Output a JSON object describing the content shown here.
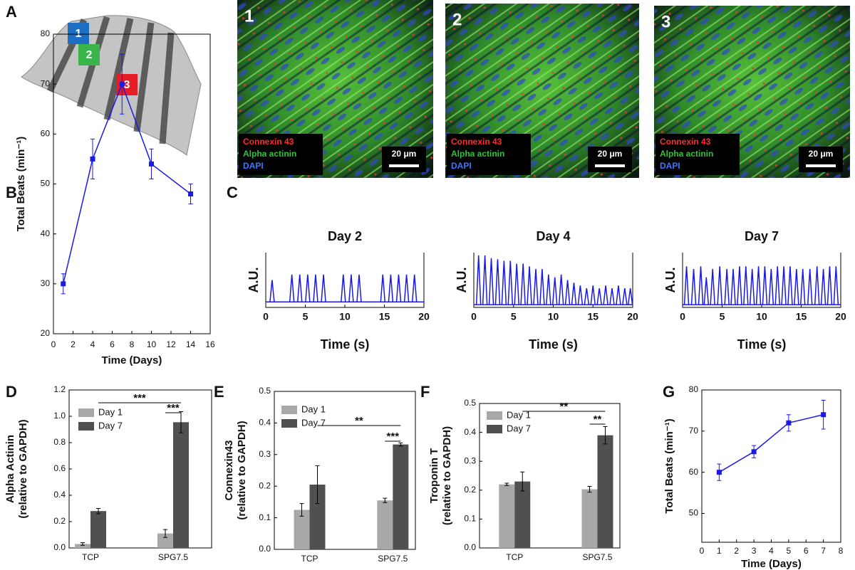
{
  "panel_a": {
    "label": "A",
    "markers": [
      "1",
      "2",
      "3"
    ],
    "marker_colors": [
      "#1d6fc4",
      "#39b54a",
      "#e51e25"
    ],
    "stain_colors": [
      "#ff2a2a",
      "#2fc23a",
      "#3a78ff"
    ],
    "images": [
      {
        "number": "1",
        "stains": [
          "Connexin 43",
          "Alpha actinin",
          "DAPI"
        ],
        "scale_bar": "20 μm"
      },
      {
        "number": "2",
        "stains": [
          "Connexin 43",
          "Alpha actinin",
          "DAPI"
        ],
        "scale_bar": "20 μm"
      },
      {
        "number": "3",
        "stains": [
          "Connexin 43",
          "Alpha actinin",
          "DAPI"
        ],
        "scale_bar": "20 μm"
      }
    ]
  },
  "chart_data": [
    {
      "type": "line",
      "panel": "B",
      "xlabel": "Time (Days)",
      "ylabel": "Total Beats (min⁻¹)",
      "x": [
        1,
        4,
        7,
        10,
        14
      ],
      "series": [
        {
          "color": "#1a1ae6",
          "values": [
            30,
            55,
            70,
            54,
            48
          ],
          "errors": [
            2,
            4,
            6,
            3,
            2
          ]
        }
      ],
      "xlim": [
        0,
        16
      ],
      "xticks": [
        0,
        2,
        4,
        6,
        8,
        10,
        12,
        14,
        16
      ],
      "ylim": [
        20,
        80
      ],
      "yticks": [
        20,
        30,
        40,
        50,
        60,
        70,
        80
      ]
    },
    {
      "type": "line",
      "panel": "C",
      "title": "Day 2",
      "xlabel": "Time (s)",
      "ylabel": "A.U.",
      "x": [
        0.8,
        3.3,
        4.3,
        5.3,
        6.3,
        7.3,
        9.8,
        10.8,
        11.8,
        14.8,
        15.8,
        16.8,
        17.8,
        18.8
      ],
      "baseline": 0.1,
      "series": [
        {
          "color": "#1a1ae6",
          "values": [
            0.5,
            0.6,
            0.6,
            0.6,
            0.6,
            0.6,
            0.6,
            0.6,
            0.6,
            0.6,
            0.6,
            0.6,
            0.6,
            0.6
          ]
        }
      ],
      "xlim": [
        0,
        20
      ],
      "xticks": [
        0,
        5,
        10,
        15,
        20
      ],
      "ylim": [
        0,
        1
      ]
    },
    {
      "type": "line",
      "title": "Day 4",
      "xlabel": "Time (s)",
      "ylabel": "A.U.",
      "x": [
        0.6,
        1.4,
        2.2,
        3.0,
        3.8,
        4.6,
        5.4,
        6.2,
        7.0,
        7.8,
        8.6,
        9.4,
        10.2,
        11.0,
        11.8,
        12.6,
        13.4,
        14.2,
        15.0,
        15.8,
        16.6,
        17.4,
        18.2,
        19.0,
        19.7
      ],
      "baseline": 0.05,
      "series": [
        {
          "color": "#1a1ae6",
          "values": [
            0.95,
            0.95,
            0.9,
            0.88,
            0.85,
            0.85,
            0.8,
            0.8,
            0.75,
            0.7,
            0.7,
            0.6,
            0.55,
            0.6,
            0.5,
            0.45,
            0.4,
            0.35,
            0.4,
            0.35,
            0.4,
            0.35,
            0.4,
            0.35,
            0.35
          ]
        }
      ],
      "xlim": [
        0,
        20
      ],
      "xticks": [
        0,
        5,
        10,
        15,
        20
      ],
      "ylim": [
        0,
        1
      ]
    },
    {
      "type": "line",
      "title": "Day 7",
      "xlabel": "Time (s)",
      "ylabel": "A.U.",
      "x": [
        0.5,
        1.4,
        2.3,
        3.0,
        3.8,
        4.7,
        5.6,
        6.4,
        7.2,
        8.0,
        8.8,
        9.6,
        10.4,
        11.2,
        12.0,
        12.8,
        13.6,
        14.4,
        15.2,
        16.1,
        17.0,
        17.8,
        18.6,
        19.4
      ],
      "baseline": 0.05,
      "series": [
        {
          "color": "#1a1ae6",
          "values": [
            0.75,
            0.7,
            0.75,
            0.55,
            0.7,
            0.75,
            0.7,
            0.7,
            0.75,
            0.75,
            0.7,
            0.75,
            0.75,
            0.7,
            0.75,
            0.75,
            0.75,
            0.7,
            0.7,
            0.7,
            0.75,
            0.7,
            0.75,
            0.75
          ]
        }
      ],
      "xlim": [
        0,
        20
      ],
      "xticks": [
        0,
        5,
        10,
        15,
        20
      ],
      "ylim": [
        0,
        1
      ]
    },
    {
      "type": "bar",
      "panel": "D",
      "ylabel": [
        "Alpha Actinin",
        "(relative to GAPDH)"
      ],
      "categories": [
        "TCP",
        "SPG7.5"
      ],
      "series": [
        {
          "name": "Day 1",
          "color": "#a8a8a8",
          "values": [
            0.03,
            0.11
          ],
          "errors": [
            0.01,
            0.03
          ]
        },
        {
          "name": "Day 7",
          "color": "#505050",
          "values": [
            0.28,
            0.955
          ],
          "errors": [
            0.02,
            0.08
          ]
        }
      ],
      "ylim": [
        0,
        1.2
      ],
      "yticks": [
        {
          "value": 0,
          "label": "0.0"
        },
        0.2,
        0.4,
        0.6,
        0.8,
        {
          "value": 1,
          "label": "1.0"
        },
        1.2
      ],
      "annotations": [
        "***",
        "***"
      ]
    },
    {
      "type": "bar",
      "panel": "E",
      "ylabel": [
        "Connexin43",
        "(relative to GAPDH)"
      ],
      "categories": [
        "TCP",
        "SPG7.5"
      ],
      "series": [
        {
          "name": "Day 1",
          "color": "#a8a8a8",
          "values": [
            0.125,
            0.155
          ],
          "errors": [
            0.02,
            0.007
          ]
        },
        {
          "name": "Day 7",
          "color": "#505050",
          "values": [
            0.205,
            0.332
          ],
          "errors": [
            0.06,
            0.005
          ]
        }
      ],
      "ylim": [
        0,
        0.5
      ],
      "yticks": [
        {
          "value": 0,
          "label": "0.0"
        },
        0.1,
        0.2,
        0.3,
        0.4,
        0.5
      ],
      "annotations": [
        "**",
        "***"
      ]
    },
    {
      "type": "bar",
      "panel": "F",
      "ylabel": [
        "Troponin T",
        "(relative to GAPDH)"
      ],
      "categories": [
        "TCP",
        "SPG7.5"
      ],
      "series": [
        {
          "name": "Day 1",
          "color": "#a8a8a8",
          "values": [
            0.22,
            0.203
          ],
          "errors": [
            0.004,
            0.01
          ]
        },
        {
          "name": "Day 7",
          "color": "#505050",
          "values": [
            0.23,
            0.39
          ],
          "errors": [
            0.033,
            0.03
          ]
        }
      ],
      "ylim": [
        0,
        0.5
      ],
      "yticks": [
        {
          "value": 0,
          "label": "0.0"
        },
        0.1,
        0.2,
        0.3,
        0.4,
        0.5
      ],
      "annotations": [
        "**",
        "**"
      ]
    },
    {
      "type": "line",
      "panel": "G",
      "xlabel": "Time (Days)",
      "ylabel": "Total Beats (min⁻¹)",
      "x": [
        1,
        3,
        5,
        7
      ],
      "series": [
        {
          "color": "#1a1ae6",
          "values": [
            60,
            65,
            72,
            74
          ],
          "errors": [
            2,
            1.5,
            2,
            3.5
          ]
        }
      ],
      "xlim": [
        0,
        8
      ],
      "xticks": [
        0,
        1,
        2,
        3,
        4,
        5,
        6,
        7,
        8
      ],
      "ylim": [
        43,
        80
      ],
      "yticks": [
        50,
        60,
        70,
        80
      ]
    }
  ]
}
